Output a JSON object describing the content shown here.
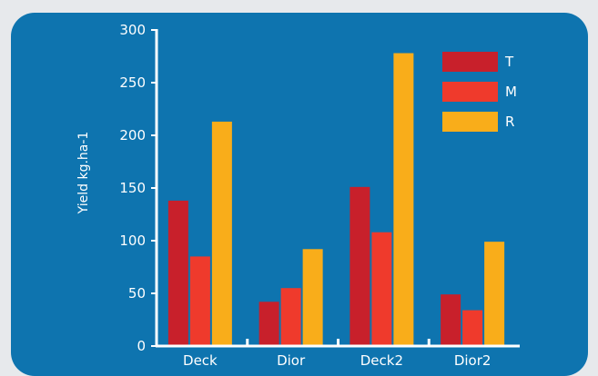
{
  "chart_data": {
    "type": "bar",
    "title": "",
    "xlabel": "",
    "ylabel": "Yield kg.ha-1",
    "ylim": [
      0,
      300
    ],
    "yticks": [
      0,
      50,
      100,
      150,
      200,
      250,
      300
    ],
    "categories": [
      "Deck",
      "Dior",
      "Deck2",
      "Dior2"
    ],
    "series": [
      {
        "name": "T",
        "color": "#c8202b",
        "values": [
          138,
          42,
          151,
          49
        ]
      },
      {
        "name": "M",
        "color": "#ef3a2c",
        "values": [
          85,
          55,
          108,
          34
        ]
      },
      {
        "name": "R",
        "color": "#f9ad1a",
        "values": [
          213,
          92,
          278,
          99
        ]
      }
    ],
    "grid": false,
    "legend": "top-right"
  }
}
